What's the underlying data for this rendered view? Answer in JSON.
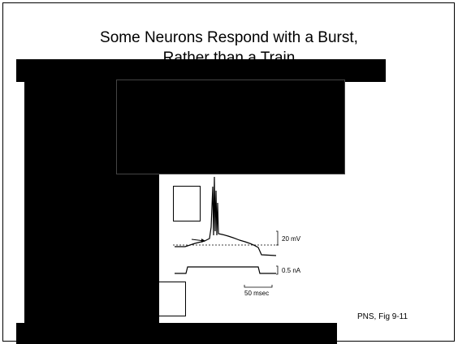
{
  "slide": {
    "title_lines": [
      "Some Neurons Respond with a Burst,",
      "Rather than a Train"
    ],
    "figure_labels": {
      "voltage_scale": "20 mV",
      "current_scale": "0.5 nA",
      "time_scale": "50 msec"
    },
    "caption": "PNS, Fig 9-11"
  }
}
